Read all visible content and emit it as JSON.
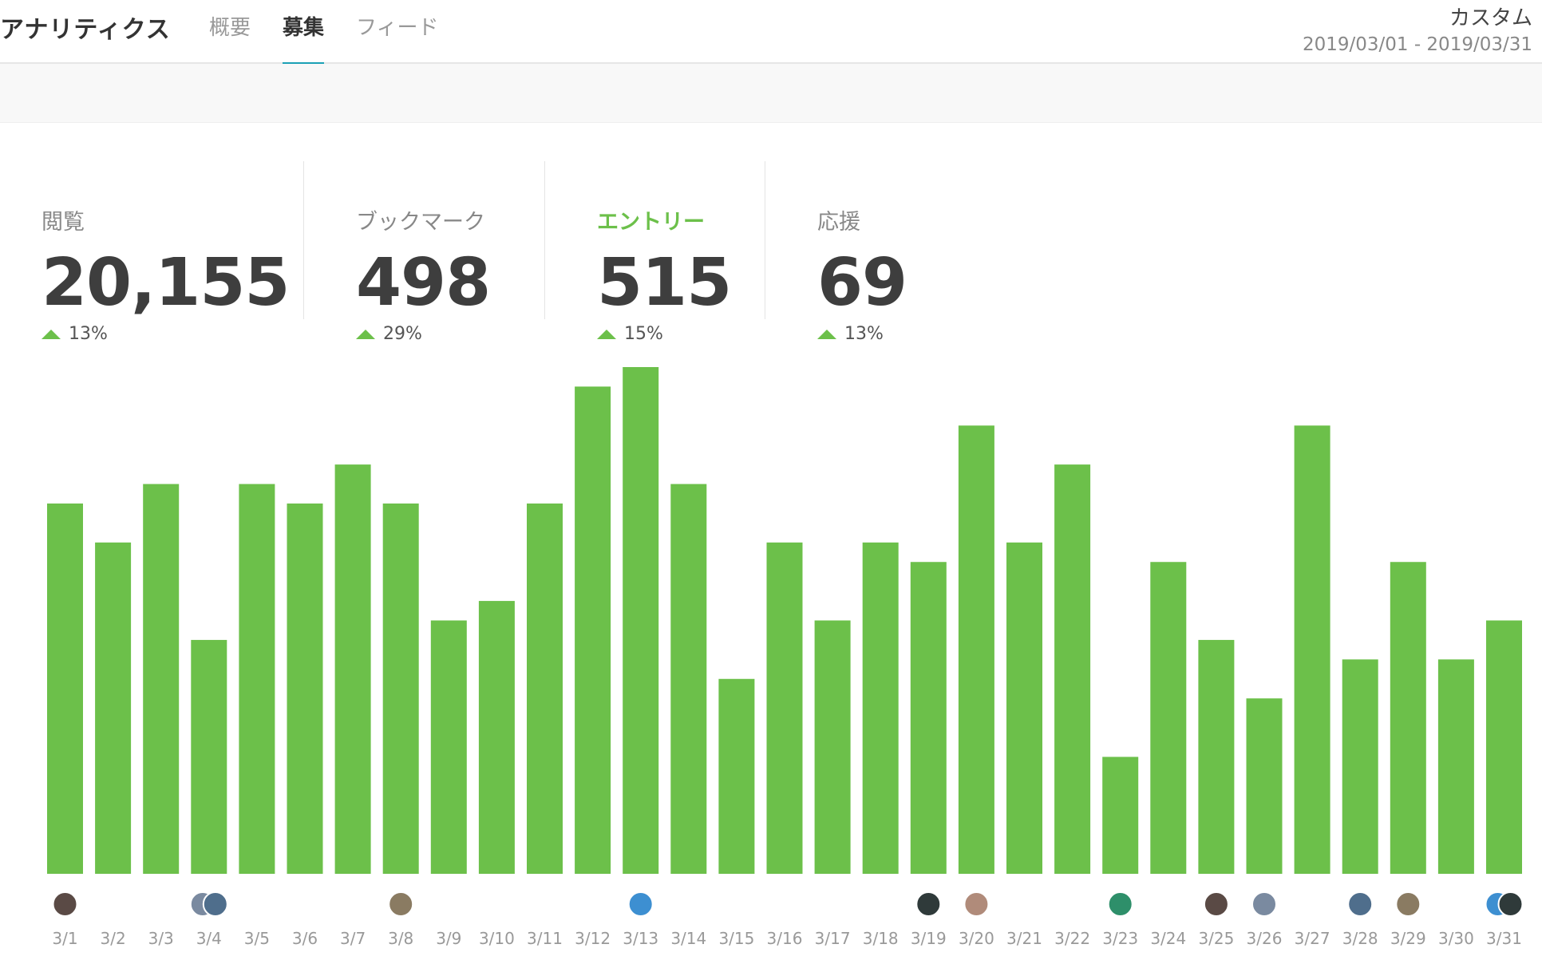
{
  "header": {
    "app_title": "アナリティクス",
    "tabs": [
      {
        "label": "概要",
        "active": false
      },
      {
        "label": "募集",
        "active": true
      },
      {
        "label": "フィード",
        "active": false
      }
    ],
    "period": {
      "label": "カスタム",
      "range": "2019/03/01 - 2019/03/31"
    },
    "accent_color": "#1ba0b5"
  },
  "stats": [
    {
      "label": "閲覧",
      "value": "20,155",
      "change": "13%",
      "trend": "up",
      "active": false
    },
    {
      "label": "ブックマーク",
      "value": "498",
      "change": "29%",
      "trend": "up",
      "active": false
    },
    {
      "label": "エントリー",
      "value": "515",
      "change": "15%",
      "trend": "up",
      "active": true
    },
    {
      "label": "応援",
      "value": "69",
      "change": "13%",
      "trend": "up",
      "active": false
    }
  ],
  "chart_data": {
    "type": "bar",
    "categories": [
      "3/1",
      "3/2",
      "3/3",
      "3/4",
      "3/5",
      "3/6",
      "3/7",
      "3/8",
      "3/9",
      "3/10",
      "3/11",
      "3/12",
      "3/13",
      "3/14",
      "3/15",
      "3/16",
      "3/17",
      "3/18",
      "3/19",
      "3/20",
      "3/21",
      "3/22",
      "3/23",
      "3/24",
      "3/25",
      "3/26",
      "3/27",
      "3/28",
      "3/29",
      "3/30",
      "3/31"
    ],
    "values": [
      19,
      17,
      20,
      12,
      20,
      19,
      21,
      19,
      13,
      14,
      19,
      25,
      26,
      20,
      10,
      17,
      13,
      17,
      16,
      23,
      17,
      21,
      6,
      16,
      12,
      9,
      23,
      11,
      16,
      11,
      13
    ],
    "avatar_counts": [
      1,
      0,
      0,
      2,
      0,
      0,
      0,
      1,
      0,
      0,
      0,
      0,
      1,
      0,
      0,
      0,
      0,
      0,
      1,
      1,
      0,
      0,
      1,
      0,
      1,
      1,
      0,
      1,
      1,
      0,
      2
    ],
    "bar_color": "#6cc04a",
    "grid": false
  }
}
